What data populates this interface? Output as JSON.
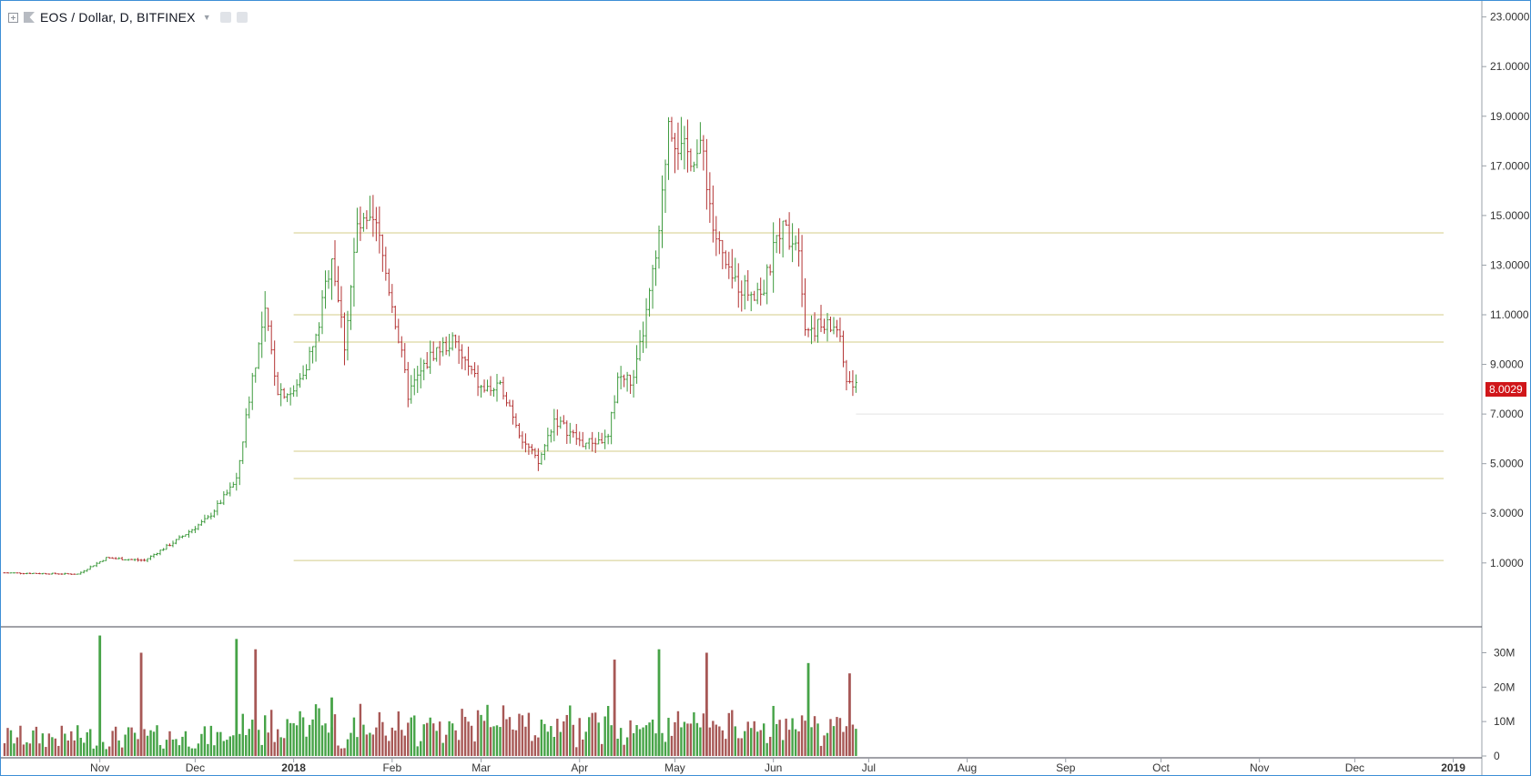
{
  "legend": {
    "symbol": "EOS / Dollar, D, BITFINEX"
  },
  "last_price_label": "8.0029",
  "colors": {
    "up": "#3d9a3d",
    "down": "#b33333",
    "vol_up": "#46a347",
    "vol_down": "#a75856",
    "level_line": "#d4cc8a",
    "price_tag": "#d0161a",
    "axis": "#787b86"
  },
  "chart_data": [
    {
      "type": "candlestick",
      "title": "EOS / Dollar, D, BITFINEX",
      "x_tick_labels": [
        "Nov",
        "Dec",
        "2018",
        "Feb",
        "Mar",
        "Apr",
        "May",
        "Jun",
        "Jul",
        "Aug",
        "Sep",
        "Oct",
        "Nov",
        "Dec",
        "2019"
      ],
      "y_tick_labels": [
        "23.0000",
        "21.0000",
        "19.0000",
        "17.0000",
        "15.0000",
        "13.0000",
        "11.0000",
        "9.0000",
        "7.0000",
        "5.0000",
        "3.0000",
        "1.0000"
      ],
      "ylim": [
        -1.5,
        23.5
      ],
      "xlim": [
        "2017-10-02",
        "2019-01-10"
      ],
      "last_price": 8.0029,
      "horizontal_levels": [
        14.3,
        11.0,
        9.9,
        5.5,
        4.4,
        1.1
      ],
      "key_points": [
        {
          "date": "2017-10-02",
          "close": 0.6
        },
        {
          "date": "2017-10-25",
          "close": 0.55
        },
        {
          "date": "2017-11-03",
          "close": 1.2
        },
        {
          "date": "2017-11-15",
          "close": 1.1
        },
        {
          "date": "2017-11-25",
          "close": 1.9
        },
        {
          "date": "2017-12-05",
          "close": 2.8
        },
        {
          "date": "2017-12-14",
          "close": 4.3
        },
        {
          "date": "2017-12-19",
          "close": 8.5
        },
        {
          "date": "2017-12-23",
          "close": 11.0
        },
        {
          "date": "2017-12-27",
          "close": 8.0
        },
        {
          "date": "2018-01-01",
          "close": 7.8
        },
        {
          "date": "2018-01-08",
          "close": 10.0
        },
        {
          "date": "2018-01-13",
          "close": 13.5
        },
        {
          "date": "2018-01-17",
          "close": 9.8
        },
        {
          "date": "2018-01-21",
          "close": 14.5
        },
        {
          "date": "2018-01-27",
          "close": 14.5
        },
        {
          "date": "2018-02-01",
          "close": 11.5
        },
        {
          "date": "2018-02-06",
          "close": 7.8
        },
        {
          "date": "2018-02-14",
          "close": 9.5
        },
        {
          "date": "2018-02-20",
          "close": 9.9
        },
        {
          "date": "2018-03-01",
          "close": 8.0
        },
        {
          "date": "2018-03-08",
          "close": 8.0
        },
        {
          "date": "2018-03-14",
          "close": 6.0
        },
        {
          "date": "2018-03-19",
          "close": 5.0
        },
        {
          "date": "2018-03-24",
          "close": 6.8
        },
        {
          "date": "2018-04-02",
          "close": 5.8
        },
        {
          "date": "2018-04-10",
          "close": 6.0
        },
        {
          "date": "2018-04-13",
          "close": 8.5
        },
        {
          "date": "2018-04-18",
          "close": 8.3
        },
        {
          "date": "2018-04-22",
          "close": 11.0
        },
        {
          "date": "2018-04-26",
          "close": 14.0
        },
        {
          "date": "2018-04-29",
          "close": 19.0
        },
        {
          "date": "2018-05-03",
          "close": 17.5
        },
        {
          "date": "2018-05-10",
          "close": 17.5
        },
        {
          "date": "2018-05-13",
          "close": 14.5
        },
        {
          "date": "2018-05-18",
          "close": 12.5
        },
        {
          "date": "2018-05-24",
          "close": 12.0
        },
        {
          "date": "2018-05-29",
          "close": 12.0
        },
        {
          "date": "2018-06-03",
          "close": 14.5
        },
        {
          "date": "2018-06-09",
          "close": 14.0
        },
        {
          "date": "2018-06-11",
          "close": 10.5
        },
        {
          "date": "2018-06-18",
          "close": 10.5
        },
        {
          "date": "2018-06-21",
          "close": 10.5
        },
        {
          "date": "2018-06-24",
          "close": 8.4
        },
        {
          "date": "2018-06-27",
          "close": 8.0029
        }
      ]
    },
    {
      "type": "bar",
      "title": "",
      "y_tick_labels": [
        "30M",
        "20M",
        "10M",
        "0"
      ],
      "ylim": [
        0,
        37
      ],
      "volume_peaks_millions": [
        {
          "date": "2017-11-01",
          "value": 35
        },
        {
          "date": "2017-11-14",
          "value": 30
        },
        {
          "date": "2017-12-14",
          "value": 34
        },
        {
          "date": "2017-12-20",
          "value": 31
        },
        {
          "date": "2018-01-13",
          "value": 17
        },
        {
          "date": "2018-04-12",
          "value": 28
        },
        {
          "date": "2018-04-26",
          "value": 31
        },
        {
          "date": "2018-05-11",
          "value": 30
        },
        {
          "date": "2018-06-12",
          "value": 27
        },
        {
          "date": "2018-06-25",
          "value": 24
        }
      ]
    }
  ]
}
